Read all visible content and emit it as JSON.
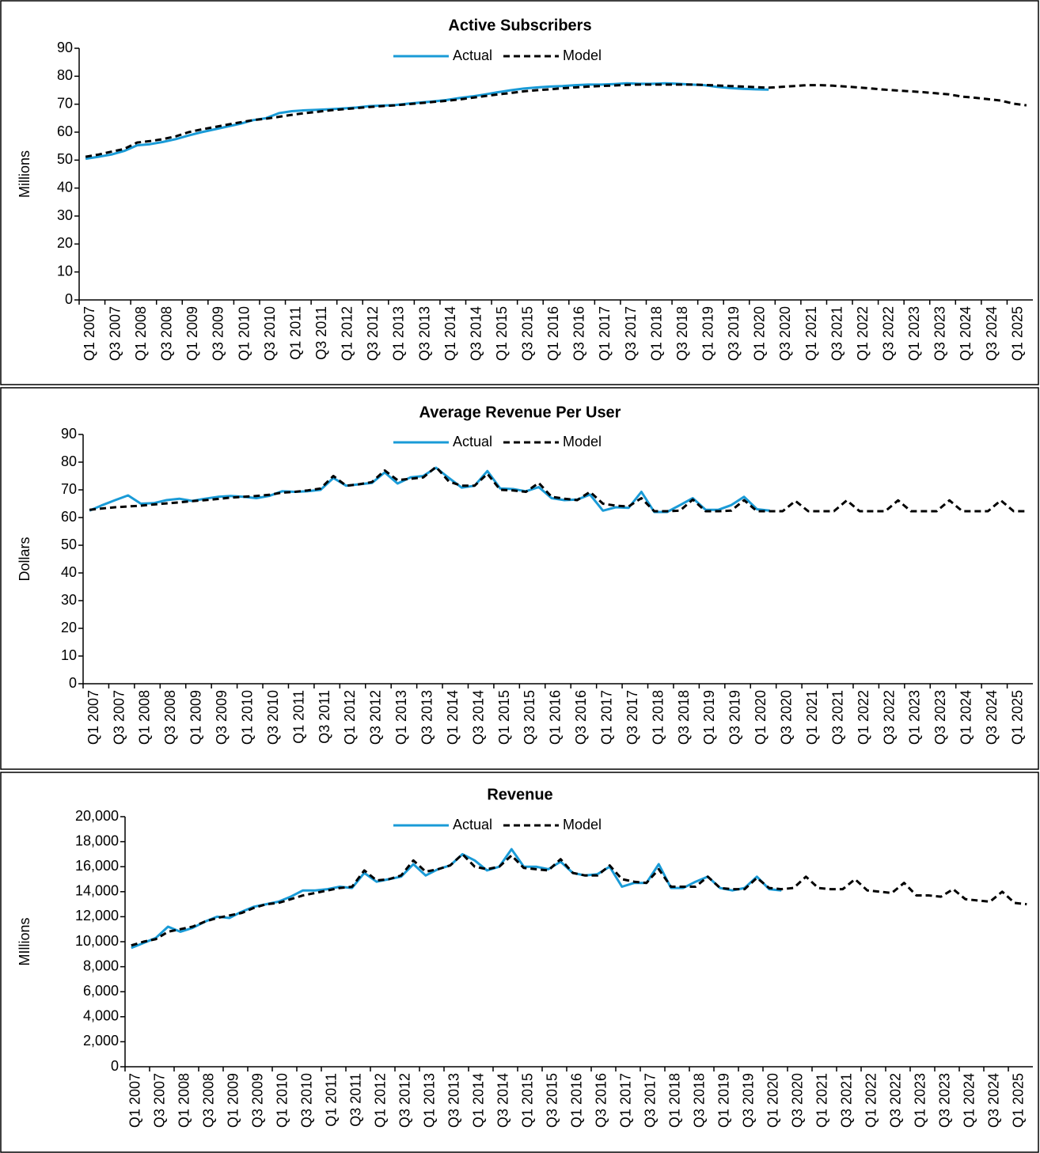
{
  "chart_data": [
    {
      "type": "line",
      "title": "Active Subscribers",
      "y_label": "Millions",
      "categories": [
        "Q1 2007",
        null,
        "Q3 2007",
        null,
        "Q1 2008",
        null,
        "Q3 2008",
        null,
        "Q1 2009",
        null,
        "Q3 2009",
        null,
        "Q1 2010",
        null,
        "Q3 2010",
        null,
        "Q1 2011",
        null,
        "Q3 2011",
        null,
        "Q1 2012",
        null,
        "Q3 2012",
        null,
        "Q1 2013",
        null,
        "Q3 2013",
        null,
        "Q1 2014",
        null,
        "Q3 2014",
        null,
        "Q1 2015",
        null,
        "Q3 2015",
        null,
        "Q1 2016",
        null,
        "Q3 2016",
        null,
        "Q1 2017",
        null,
        "Q3 2017",
        null,
        "Q1 2018",
        null,
        "Q3 2018",
        null,
        "Q1 2019",
        null,
        "Q3 2019",
        null,
        "Q1 2020",
        null,
        "Q3 2020",
        null,
        "Q1 2021",
        null,
        "Q3 2021",
        null,
        "Q1 2022",
        null,
        "Q3 2022",
        null,
        "Q1 2023",
        null,
        "Q3 2023",
        null,
        "Q1 2024",
        null,
        "Q3 2024",
        null,
        "Q1 2025",
        null
      ],
      "ylim": [
        0,
        90
      ],
      "yticks": [
        0,
        10,
        20,
        30,
        40,
        50,
        60,
        70,
        80,
        90
      ],
      "legend": "top-center",
      "series": [
        {
          "name": "Actual",
          "color": "#1a9bd7",
          "line_style": "solid",
          "values": [
            50.5,
            51.2,
            52.0,
            53.3,
            55.3,
            55.7,
            56.5,
            57.5,
            58.8,
            60.0,
            61.0,
            62.0,
            63.0,
            64.3,
            65.0,
            66.8,
            67.5,
            67.8,
            68.0,
            68.2,
            68.5,
            68.8,
            69.3,
            69.5,
            69.7,
            70.2,
            70.6,
            71.0,
            71.5,
            72.2,
            72.8,
            73.5,
            74.3,
            75.0,
            75.6,
            76.0,
            76.3,
            76.5,
            76.8,
            77.0,
            77.0,
            77.2,
            77.5,
            77.3,
            77.3,
            77.5,
            77.3,
            77.0,
            76.8,
            76.2,
            75.8,
            75.5,
            75.3,
            75.2,
            null,
            null,
            null,
            null,
            null,
            null,
            null,
            null,
            null,
            null,
            null,
            null,
            null,
            null,
            null,
            null,
            null,
            null,
            null,
            null
          ]
        },
        {
          "name": "Model",
          "color": "#000000",
          "line_style": "dashed",
          "values": [
            51.2,
            52.0,
            53.0,
            54.0,
            56.3,
            56.8,
            57.5,
            58.5,
            60.0,
            61.0,
            61.8,
            62.7,
            63.5,
            64.3,
            64.8,
            65.5,
            66.2,
            66.8,
            67.3,
            67.8,
            68.2,
            68.6,
            69.0,
            69.3,
            69.6,
            70.0,
            70.4,
            70.8,
            71.2,
            71.7,
            72.3,
            72.9,
            73.5,
            74.0,
            74.6,
            75.0,
            75.3,
            75.7,
            76.0,
            76.3,
            76.5,
            76.7,
            76.9,
            77.0,
            77.0,
            77.0,
            77.0,
            77.0,
            76.9,
            76.7,
            76.5,
            76.3,
            76.1,
            75.9,
            76.2,
            76.5,
            76.8,
            76.8,
            76.6,
            76.3,
            76.0,
            75.6,
            75.2,
            74.9,
            74.6,
            74.3,
            73.9,
            73.5,
            72.7,
            72.3,
            71.8,
            71.3,
            70.2,
            69.6
          ]
        }
      ]
    },
    {
      "type": "line",
      "title": "Average Revenue Per User",
      "y_label": "Dollars",
      "categories": [
        "Q1 2007",
        null,
        "Q3 2007",
        null,
        "Q1 2008",
        null,
        "Q3 2008",
        null,
        "Q1 2009",
        null,
        "Q3 2009",
        null,
        "Q1 2010",
        null,
        "Q3 2010",
        null,
        "Q1 2011",
        null,
        "Q3 2011",
        null,
        "Q1 2012",
        null,
        "Q3 2012",
        null,
        "Q1 2013",
        null,
        "Q3 2013",
        null,
        "Q1 2014",
        null,
        "Q3 2014",
        null,
        "Q1 2015",
        null,
        "Q3 2015",
        null,
        "Q1 2016",
        null,
        "Q3 2016",
        null,
        "Q1 2017",
        null,
        "Q3 2017",
        null,
        "Q1 2018",
        null,
        "Q3 2018",
        null,
        "Q1 2019",
        null,
        "Q3 2019",
        null,
        "Q1 2020",
        null,
        "Q3 2020",
        null,
        "Q1 2021",
        null,
        "Q3 2021",
        null,
        "Q1 2022",
        null,
        "Q3 2022",
        null,
        "Q1 2023",
        null,
        "Q3 2023",
        null,
        "Q1 2024",
        null,
        "Q3 2024",
        null,
        "Q1 2025",
        null
      ],
      "ylim": [
        0,
        90
      ],
      "yticks": [
        0,
        10,
        20,
        30,
        40,
        50,
        60,
        70,
        80,
        90
      ],
      "legend": "top-center",
      "series": [
        {
          "name": "Actual",
          "color": "#1a9bd7",
          "line_style": "solid",
          "values": [
            62.5,
            64.5,
            66.3,
            68.0,
            65.0,
            65.2,
            66.3,
            66.8,
            66.0,
            66.8,
            67.5,
            67.8,
            67.5,
            67.0,
            67.8,
            69.5,
            69.3,
            69.5,
            70.0,
            74.3,
            71.5,
            72.0,
            72.5,
            76.3,
            72.3,
            74.5,
            75.0,
            78.0,
            74.3,
            70.8,
            71.5,
            76.8,
            70.5,
            70.3,
            69.5,
            71.0,
            67.0,
            66.3,
            66.5,
            68.3,
            62.5,
            63.7,
            63.5,
            69.3,
            62.0,
            62.0,
            64.5,
            67.0,
            62.8,
            62.8,
            64.5,
            67.5,
            63.0,
            62.5,
            null,
            null,
            null,
            null,
            null,
            null,
            null,
            null,
            null,
            null,
            null,
            null,
            null,
            null,
            null,
            null,
            null,
            null,
            null,
            null
          ]
        },
        {
          "name": "Model",
          "color": "#000000",
          "line_style": "dashed",
          "values": [
            62.8,
            63.3,
            63.7,
            64.0,
            64.3,
            64.7,
            65.1,
            65.5,
            65.9,
            66.3,
            66.7,
            67.2,
            67.5,
            67.8,
            68.2,
            69.0,
            69.3,
            69.8,
            70.5,
            75.0,
            71.5,
            72.0,
            72.8,
            77.0,
            73.5,
            74.0,
            74.5,
            78.3,
            73.0,
            71.5,
            71.5,
            75.8,
            70.0,
            69.8,
            69.3,
            72.5,
            67.5,
            66.8,
            66.3,
            69.3,
            65.0,
            64.3,
            64.0,
            67.0,
            62.3,
            62.3,
            62.5,
            66.5,
            62.3,
            62.3,
            62.5,
            66.3,
            62.3,
            62.3,
            62.3,
            66.0,
            62.3,
            62.3,
            62.3,
            66.2,
            62.3,
            62.3,
            62.3,
            66.2,
            62.3,
            62.3,
            62.3,
            66.2,
            62.3,
            62.3,
            62.3,
            66.2,
            62.3,
            62.3
          ]
        }
      ]
    },
    {
      "type": "line",
      "title": "Revenue",
      "y_label": "MIllions",
      "categories": [
        "Q1 2007",
        null,
        "Q3 2007",
        null,
        "Q1 2008",
        null,
        "Q3 2008",
        null,
        "Q1 2009",
        null,
        "Q3 2009",
        null,
        "Q1 2010",
        null,
        "Q3 2010",
        null,
        "Q1 2011",
        null,
        "Q3 2011",
        null,
        "Q1 2012",
        null,
        "Q3 2012",
        null,
        "Q1 2013",
        null,
        "Q3 2013",
        null,
        "Q1 2014",
        null,
        "Q3 2014",
        null,
        "Q1 2015",
        null,
        "Q3 2015",
        null,
        "Q1 2016",
        null,
        "Q3 2016",
        null,
        "Q1 2017",
        null,
        "Q3 2017",
        null,
        "Q1 2018",
        null,
        "Q3 2018",
        null,
        "Q1 2019",
        null,
        "Q3 2019",
        null,
        "Q1 2020",
        null,
        "Q3 2020",
        null,
        "Q1 2021",
        null,
        "Q3 2021",
        null,
        "Q1 2022",
        null,
        "Q3 2022",
        null,
        "Q1 2023",
        null,
        "Q3 2023",
        null,
        "Q1 2024",
        null,
        "Q3 2024",
        null,
        "Q1 2025",
        null
      ],
      "ylim": [
        0,
        20000
      ],
      "yticks": [
        0,
        {
          "value": 2000,
          "label": "2,000"
        },
        {
          "value": 4000,
          "label": "4,000"
        },
        {
          "value": 6000,
          "label": "6,000"
        },
        {
          "value": 8000,
          "label": "8,000"
        },
        {
          "value": 10000,
          "label": "10,000"
        },
        {
          "value": 12000,
          "label": "12,000"
        },
        {
          "value": 14000,
          "label": "14,000"
        },
        {
          "value": 16000,
          "label": "16,000"
        },
        {
          "value": 18000,
          "label": "18,000"
        },
        {
          "value": 20000,
          "label": "20,000"
        }
      ],
      "legend": "top-center",
      "series": [
        {
          "name": "Actual",
          "color": "#1a9bd7",
          "line_style": "solid",
          "values": [
            9500,
            9900,
            10300,
            11200,
            10800,
            11100,
            11600,
            12000,
            11900,
            12400,
            12800,
            13000,
            13200,
            13600,
            14100,
            14100,
            14200,
            14400,
            14300,
            15500,
            14800,
            15000,
            15200,
            16200,
            15300,
            15800,
            16100,
            17000,
            16500,
            15700,
            16000,
            17400,
            16000,
            16000,
            15800,
            16400,
            15500,
            15300,
            15400,
            16000,
            14400,
            14700,
            14700,
            16200,
            14300,
            14300,
            14800,
            15200,
            14300,
            14100,
            14300,
            15200,
            14200,
            14100,
            null,
            null,
            null,
            null,
            null,
            null,
            null,
            null,
            null,
            null,
            null,
            null,
            null,
            null,
            null,
            null,
            null,
            null,
            null,
            null
          ]
        },
        {
          "name": "Model",
          "color": "#000000",
          "line_style": "dashed",
          "values": [
            9700,
            10000,
            10200,
            10800,
            11000,
            11200,
            11600,
            11900,
            12100,
            12300,
            12700,
            13000,
            13100,
            13400,
            13700,
            13900,
            14100,
            14300,
            14400,
            15700,
            14900,
            15000,
            15300,
            16500,
            15600,
            15800,
            16100,
            17000,
            16000,
            15800,
            16000,
            16900,
            15900,
            15800,
            15700,
            16600,
            15500,
            15300,
            15300,
            16100,
            15000,
            14800,
            14700,
            15800,
            14400,
            14400,
            14400,
            15200,
            14300,
            14200,
            14200,
            15100,
            14300,
            14200,
            14300,
            15200,
            14300,
            14200,
            14200,
            15000,
            14100,
            14000,
            13900,
            14700,
            13700,
            13700,
            13600,
            14200,
            13400,
            13300,
            13200,
            14000,
            13100,
            13000
          ]
        }
      ]
    }
  ]
}
